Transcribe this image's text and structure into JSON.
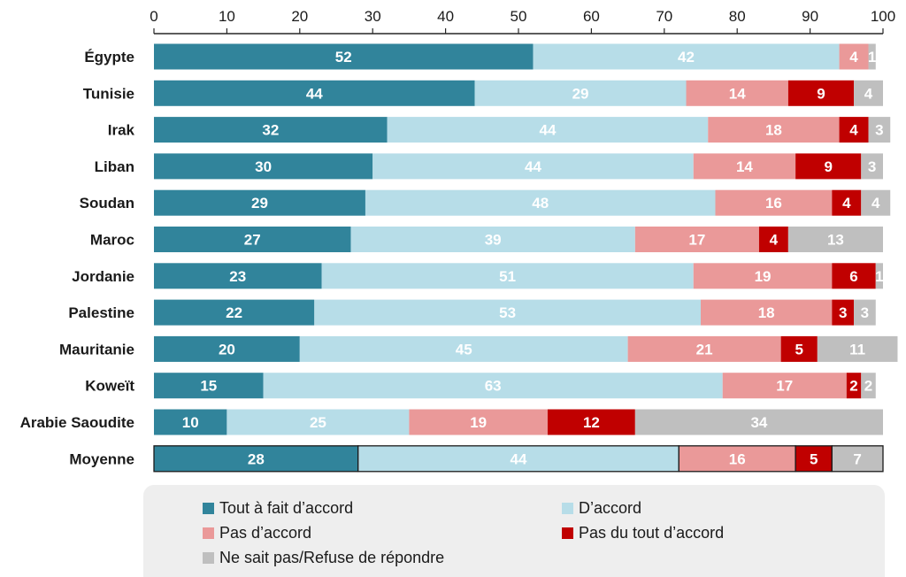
{
  "chart_data": {
    "type": "bar",
    "orientation": "horizontal",
    "stacked": true,
    "xlim": [
      0,
      100
    ],
    "xticks": [
      0,
      10,
      20,
      30,
      40,
      50,
      60,
      70,
      80,
      90,
      100
    ],
    "categories": [
      "Égypte",
      "Tunisie",
      "Irak",
      "Liban",
      "Soudan",
      "Maroc",
      "Jordanie",
      "Palestine",
      "Mauritanie",
      "Koweït",
      "Arabie Saoudite",
      "Moyenne"
    ],
    "series": [
      {
        "name": "Tout à fait d’accord",
        "color": "#31849b",
        "label_color": "#ffffff",
        "values": [
          52,
          44,
          32,
          30,
          29,
          27,
          23,
          22,
          20,
          15,
          10,
          28
        ]
      },
      {
        "name": "D’accord",
        "color": "#b7dde8",
        "label_color": "#ffffff",
        "values": [
          42,
          29,
          44,
          44,
          48,
          39,
          51,
          53,
          45,
          63,
          25,
          44
        ]
      },
      {
        "name": "Pas d’accord",
        "color": "#ea9999",
        "label_color": "#ffffff",
        "values": [
          4,
          14,
          18,
          14,
          16,
          17,
          19,
          18,
          21,
          17,
          19,
          16
        ]
      },
      {
        "name": "Pas du tout d’accord",
        "color": "#c00000",
        "label_color": "#ffffff",
        "values": [
          0,
          9,
          4,
          9,
          4,
          4,
          6,
          3,
          5,
          2,
          12,
          5
        ]
      },
      {
        "name": "Ne sait pas/Refuse de répondre",
        "color": "#bfbfbf",
        "label_color": "#ffffff",
        "values": [
          1,
          4,
          3,
          3,
          4,
          13,
          1,
          3,
          11,
          2,
          34,
          7
        ]
      }
    ],
    "outlined_category": "Moyenne",
    "grid": false,
    "legend_position": "bottom"
  }
}
